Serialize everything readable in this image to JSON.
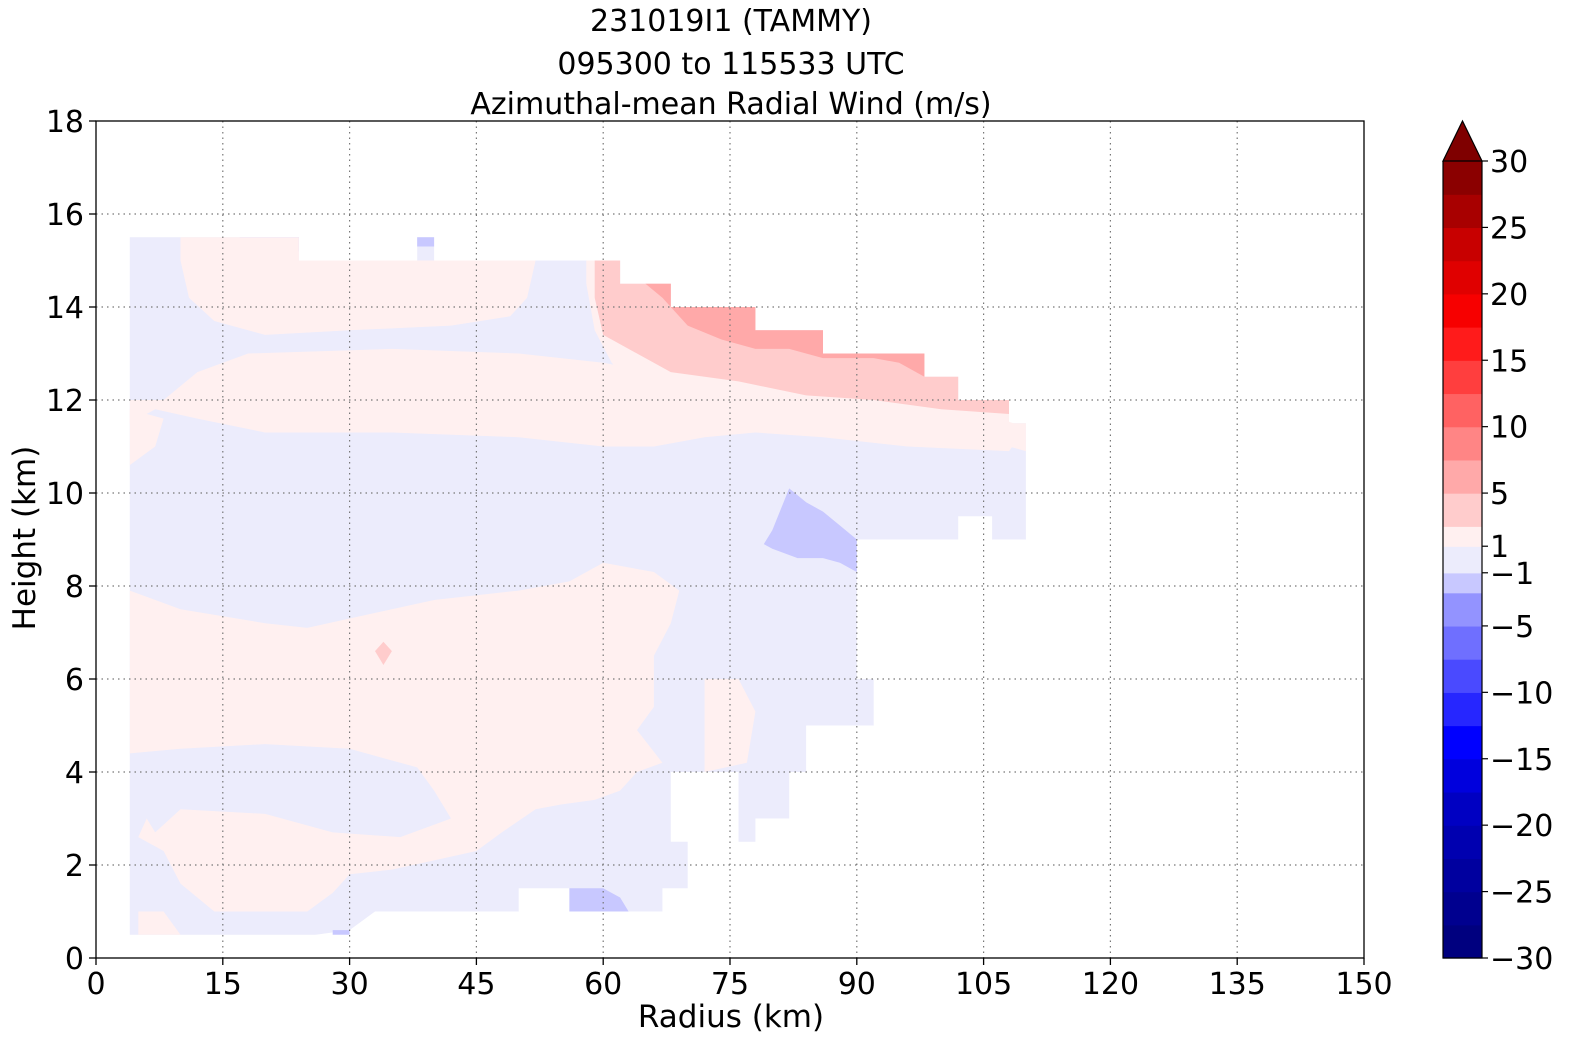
{
  "chart_data": {
    "type": "heatmap",
    "title_lines": [
      "231019I1 (TAMMY)",
      "095300 to 115533 UTC",
      "Azimuthal-mean Radial Wind (m/s)"
    ],
    "xlabel": "Radius (km)",
    "ylabel": "Height (km)",
    "xlim": [
      0,
      150
    ],
    "ylim": [
      0,
      18
    ],
    "x_ticks": [
      "0",
      "15",
      "30",
      "45",
      "60",
      "75",
      "90",
      "105",
      "120",
      "135",
      "150"
    ],
    "y_ticks": [
      "0",
      "2",
      "4",
      "6",
      "8",
      "10",
      "12",
      "14",
      "16",
      "18"
    ],
    "grid": true,
    "colorbar": {
      "range": [
        -30,
        30
      ],
      "tick_values": [
        -30,
        -25,
        -20,
        -15,
        -10,
        -5,
        -1,
        1,
        5,
        10,
        15,
        20,
        25,
        30
      ],
      "tick_labels": [
        "−30",
        "−25",
        "−20",
        "−15",
        "−10",
        "−5",
        "−1",
        "1",
        "5",
        "10",
        "15",
        "20",
        "25",
        "30"
      ],
      "extend": "max",
      "levels": [
        {
          "lo": -30,
          "hi": -27.5,
          "color": "#00007f"
        },
        {
          "lo": -27.5,
          "hi": -25,
          "color": "#00008f"
        },
        {
          "lo": -25,
          "hi": -22.5,
          "color": "#00009f"
        },
        {
          "lo": -22.5,
          "hi": -20,
          "color": "#0000b0"
        },
        {
          "lo": -20,
          "hi": -17.5,
          "color": "#0000c2"
        },
        {
          "lo": -17.5,
          "hi": -15,
          "color": "#0000dd"
        },
        {
          "lo": -15,
          "hi": -12.5,
          "color": "#0000ff"
        },
        {
          "lo": -12.5,
          "hi": -10,
          "color": "#2626ff"
        },
        {
          "lo": -10,
          "hi": -7.5,
          "color": "#4a4aff"
        },
        {
          "lo": -7.5,
          "hi": -5,
          "color": "#6f6fff"
        },
        {
          "lo": -5,
          "hi": -2.5,
          "color": "#9393ff"
        },
        {
          "lo": -2.5,
          "hi": -1,
          "color": "#c8c8ff"
        },
        {
          "lo": -1,
          "hi": 1,
          "color": "#ececfc"
        },
        {
          "lo": 1,
          "hi": 2.5,
          "color": "#fff0f0"
        },
        {
          "lo": 2.5,
          "hi": 5,
          "color": "#ffcccc"
        },
        {
          "lo": 5,
          "hi": 7.5,
          "color": "#ffa9a9"
        },
        {
          "lo": 7.5,
          "hi": 10,
          "color": "#ff8585"
        },
        {
          "lo": 10,
          "hi": 12.5,
          "color": "#ff6262"
        },
        {
          "lo": 12.5,
          "hi": 15,
          "color": "#ff3e3e"
        },
        {
          "lo": 15,
          "hi": 17.5,
          "color": "#ff1b1b"
        },
        {
          "lo": 17.5,
          "hi": 20,
          "color": "#f70000"
        },
        {
          "lo": 20,
          "hi": 22.5,
          "color": "#e00000"
        },
        {
          "lo": 22.5,
          "hi": 25,
          "color": "#c80000"
        },
        {
          "lo": 25,
          "hi": 27.5,
          "color": "#a80000"
        },
        {
          "lo": 27.5,
          "hi": 30,
          "color": "#8b0000"
        }
      ],
      "extend_color": "#7f0000"
    },
    "fields": [
      {
        "value": -0.3,
        "points": [
          [
            4,
            0.5
          ],
          [
            26,
            0.5
          ],
          [
            30,
            0.6
          ],
          [
            33,
            1.0
          ],
          [
            50,
            1.0
          ],
          [
            50,
            1.5
          ],
          [
            56,
            1.5
          ],
          [
            56,
            1.0
          ],
          [
            67,
            1.0
          ],
          [
            67,
            1.5
          ],
          [
            70,
            1.5
          ],
          [
            70,
            2.5
          ],
          [
            68,
            2.5
          ],
          [
            68,
            4.0
          ],
          [
            76,
            4.0
          ],
          [
            76,
            2.5
          ],
          [
            78,
            2.5
          ],
          [
            78,
            3.0
          ],
          [
            82,
            3.0
          ],
          [
            82,
            4.0
          ],
          [
            84,
            4.0
          ],
          [
            84,
            5.0
          ],
          [
            92,
            5.0
          ],
          [
            92,
            6.0
          ],
          [
            90,
            6.0
          ],
          [
            90,
            9.0
          ],
          [
            102,
            9.0
          ],
          [
            102,
            9.5
          ],
          [
            106,
            9.5
          ],
          [
            106,
            9.0
          ],
          [
            110,
            9.0
          ],
          [
            110,
            11.5
          ],
          [
            108,
            11.5
          ],
          [
            108,
            12.0
          ],
          [
            102,
            12.0
          ],
          [
            102,
            12.5
          ],
          [
            98,
            12.5
          ],
          [
            98,
            13.0
          ],
          [
            86,
            13.0
          ],
          [
            86,
            13.5
          ],
          [
            78,
            13.5
          ],
          [
            78,
            14.0
          ],
          [
            68,
            14.0
          ],
          [
            68,
            14.5
          ],
          [
            62,
            14.5
          ],
          [
            62,
            15.0
          ],
          [
            40,
            15.0
          ],
          [
            40,
            15.5
          ],
          [
            38,
            15.5
          ],
          [
            38,
            15.0
          ],
          [
            24,
            15.0
          ],
          [
            24,
            15.5
          ],
          [
            4,
            15.5
          ]
        ]
      },
      {
        "value": -1.5,
        "points": [
          [
            17,
            15.5
          ],
          [
            24,
            15.5
          ],
          [
            24,
            15.2
          ],
          [
            20,
            15.0
          ],
          [
            17,
            15.3
          ]
        ]
      },
      {
        "value": -1.5,
        "points": [
          [
            24,
            15.0
          ],
          [
            32,
            15.0
          ],
          [
            31,
            14.6
          ],
          [
            28,
            14.7
          ],
          [
            25,
            14.9
          ]
        ]
      },
      {
        "value": -1.5,
        "points": [
          [
            38,
            15.5
          ],
          [
            40,
            15.5
          ],
          [
            40,
            15.3
          ],
          [
            38,
            15.3
          ]
        ]
      },
      {
        "value": -1.5,
        "points": [
          [
            80,
            9.2
          ],
          [
            82,
            10.1
          ],
          [
            84,
            9.8
          ],
          [
            86,
            9.6
          ],
          [
            88,
            9.3
          ],
          [
            90,
            9.0
          ],
          [
            90,
            8.3
          ],
          [
            88,
            8.5
          ],
          [
            86,
            8.6
          ],
          [
            83,
            8.6
          ],
          [
            80,
            8.8
          ],
          [
            79,
            8.9
          ]
        ]
      },
      {
        "value": -1.5,
        "points": [
          [
            56,
            1.5
          ],
          [
            60,
            1.5
          ],
          [
            62,
            1.3
          ],
          [
            63,
            1.0
          ],
          [
            56,
            1.0
          ]
        ]
      },
      {
        "value": -1.5,
        "points": [
          [
            28,
            0.5
          ],
          [
            30,
            0.5
          ],
          [
            30,
            0.6
          ],
          [
            28,
            0.6
          ]
        ]
      },
      {
        "value": 1.5,
        "points": [
          [
            4,
            15.5
          ],
          [
            10,
            15.5
          ],
          [
            10,
            15.0
          ],
          [
            11,
            14.2
          ],
          [
            14,
            13.7
          ],
          [
            20,
            13.4
          ],
          [
            30,
            13.5
          ],
          [
            42,
            13.6
          ],
          [
            49,
            13.8
          ],
          [
            51,
            14.2
          ],
          [
            52,
            15.0
          ],
          [
            58,
            15.0
          ],
          [
            58,
            14.5
          ],
          [
            59,
            13.5
          ],
          [
            61,
            12.8
          ],
          [
            64,
            12.2
          ],
          [
            68,
            11.9
          ],
          [
            76,
            11.8
          ],
          [
            82,
            11.6
          ],
          [
            88,
            11.5
          ],
          [
            96,
            11.4
          ],
          [
            104,
            11.3
          ],
          [
            108,
            11.0
          ],
          [
            110,
            10.9
          ],
          [
            110,
            11.5
          ],
          [
            108,
            11.5
          ],
          [
            108,
            12.0
          ],
          [
            102,
            12.0
          ],
          [
            102,
            12.5
          ],
          [
            98,
            12.5
          ],
          [
            98,
            13.0
          ],
          [
            86,
            13.0
          ],
          [
            86,
            13.5
          ],
          [
            78,
            13.5
          ],
          [
            78,
            14.0
          ],
          [
            68,
            14.0
          ],
          [
            68,
            14.5
          ],
          [
            62,
            14.5
          ],
          [
            62,
            15.0
          ],
          [
            58,
            15.0
          ],
          [
            58,
            15.0
          ],
          [
            52,
            15.0
          ],
          [
            40,
            15.0
          ],
          [
            24,
            15.0
          ],
          [
            24,
            15.5
          ]
        ]
      },
      {
        "value": 1.5,
        "points": [
          [
            4,
            11.5
          ],
          [
            7,
            11.8
          ],
          [
            12,
            11.6
          ],
          [
            20,
            11.3
          ],
          [
            35,
            11.3
          ],
          [
            50,
            11.2
          ],
          [
            60,
            11.0
          ],
          [
            66,
            11.0
          ],
          [
            72,
            11.2
          ],
          [
            78,
            11.3
          ],
          [
            86,
            11.2
          ],
          [
            96,
            11.0
          ],
          [
            108,
            10.9
          ],
          [
            110,
            11.4
          ],
          [
            104,
            11.8
          ],
          [
            96,
            12.0
          ],
          [
            86,
            12.2
          ],
          [
            76,
            12.4
          ],
          [
            66,
            12.6
          ],
          [
            60,
            12.8
          ],
          [
            50,
            13.0
          ],
          [
            35,
            13.1
          ],
          [
            18,
            13.0
          ],
          [
            12,
            12.6
          ],
          [
            8,
            12.0
          ],
          [
            4,
            12.0
          ]
        ]
      },
      {
        "value": 1.5,
        "points": [
          [
            4,
            10.6
          ],
          [
            7,
            11.0
          ],
          [
            8,
            11.6
          ],
          [
            4,
            11.8
          ]
        ]
      },
      {
        "value": 1.5,
        "points": [
          [
            4,
            7.9
          ],
          [
            10,
            7.5
          ],
          [
            20,
            7.2
          ],
          [
            25,
            7.1
          ],
          [
            30,
            7.3
          ],
          [
            40,
            7.7
          ],
          [
            50,
            7.9
          ],
          [
            56,
            8.1
          ],
          [
            60,
            8.5
          ],
          [
            66,
            8.3
          ],
          [
            69,
            7.9
          ],
          [
            68,
            7.2
          ],
          [
            66,
            6.5
          ],
          [
            66,
            5.8
          ],
          [
            66,
            5.4
          ],
          [
            64,
            4.9
          ],
          [
            67,
            4.2
          ],
          [
            64,
            4.0
          ],
          [
            62,
            3.6
          ],
          [
            59,
            3.4
          ],
          [
            55,
            3.3
          ],
          [
            52,
            3.2
          ],
          [
            48,
            2.7
          ],
          [
            45,
            2.3
          ],
          [
            40,
            2.1
          ],
          [
            35,
            1.9
          ],
          [
            30,
            1.8
          ],
          [
            28,
            1.4
          ],
          [
            25,
            1.0
          ],
          [
            20,
            1.0
          ],
          [
            14,
            1.0
          ],
          [
            10,
            1.6
          ],
          [
            8,
            2.3
          ],
          [
            5,
            2.6
          ],
          [
            6,
            3.0
          ],
          [
            7,
            2.7
          ],
          [
            10,
            3.2
          ],
          [
            20,
            3.1
          ],
          [
            28,
            2.7
          ],
          [
            36,
            2.6
          ],
          [
            42,
            3.0
          ],
          [
            40,
            3.6
          ],
          [
            38,
            4.1
          ],
          [
            30,
            4.5
          ],
          [
            20,
            4.6
          ],
          [
            10,
            4.5
          ],
          [
            4,
            4.4
          ],
          [
            4,
            5.3
          ],
          [
            4,
            7.9
          ]
        ]
      },
      {
        "value": 1.5,
        "points": [
          [
            72,
            6.0
          ],
          [
            76,
            6.0
          ],
          [
            78,
            5.3
          ],
          [
            77,
            4.2
          ],
          [
            72,
            4.0
          ],
          [
            72,
            5.2
          ]
        ]
      },
      {
        "value": 1.5,
        "points": [
          [
            5,
            1.0
          ],
          [
            8,
            1.0
          ],
          [
            10,
            0.5
          ],
          [
            5,
            0.5
          ]
        ]
      },
      {
        "value": 3.0,
        "points": [
          [
            33,
            6.6
          ],
          [
            34,
            6.8
          ],
          [
            35,
            6.6
          ],
          [
            34,
            6.3
          ]
        ]
      },
      {
        "value": 3.0,
        "points": [
          [
            59,
            15.0
          ],
          [
            62,
            15.0
          ],
          [
            62,
            14.5
          ],
          [
            68,
            14.5
          ],
          [
            68,
            14.0
          ],
          [
            78,
            14.0
          ],
          [
            78,
            13.5
          ],
          [
            86,
            13.5
          ],
          [
            86,
            13.0
          ],
          [
            98,
            13.0
          ],
          [
            98,
            12.5
          ],
          [
            102,
            12.5
          ],
          [
            102,
            12.0
          ],
          [
            108,
            12.0
          ],
          [
            108,
            11.7
          ],
          [
            100,
            11.8
          ],
          [
            92,
            12.0
          ],
          [
            84,
            12.1
          ],
          [
            76,
            12.4
          ],
          [
            68,
            12.6
          ],
          [
            64,
            13.0
          ],
          [
            60,
            13.4
          ],
          [
            59,
            14.2
          ]
        ]
      },
      {
        "value": 6.0,
        "points": [
          [
            65,
            14.5
          ],
          [
            68,
            14.5
          ],
          [
            68,
            14.0
          ],
          [
            78,
            14.0
          ],
          [
            78,
            13.5
          ],
          [
            86,
            13.5
          ],
          [
            86,
            13.0
          ],
          [
            98,
            13.0
          ],
          [
            98,
            12.5
          ],
          [
            95,
            12.8
          ],
          [
            92,
            12.9
          ],
          [
            86,
            12.9
          ],
          [
            82,
            13.1
          ],
          [
            78,
            13.1
          ],
          [
            74,
            13.3
          ],
          [
            70,
            13.6
          ],
          [
            67,
            14.2
          ]
        ]
      }
    ]
  }
}
